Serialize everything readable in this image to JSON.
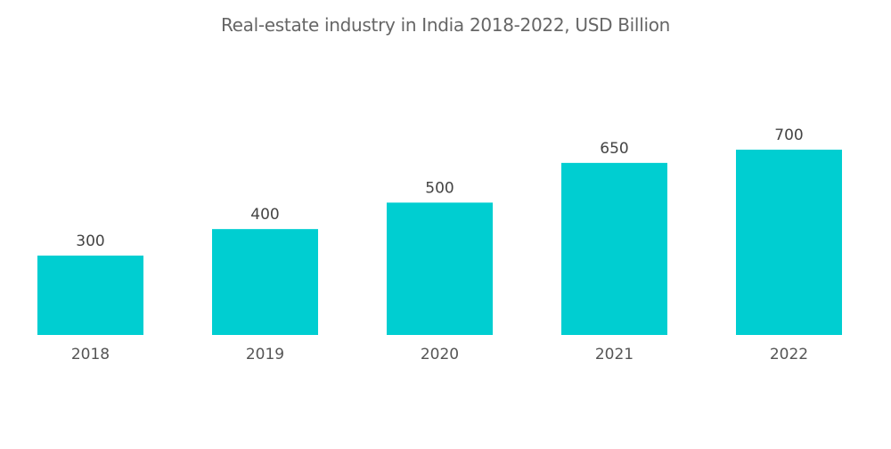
{
  "chart_data": {
    "type": "bar",
    "title": "Real-estate industry in India 2018-2022, USD Billion",
    "categories": [
      "2018",
      "2019",
      "2020",
      "2021",
      "2022"
    ],
    "values": [
      300,
      400,
      500,
      650,
      700
    ],
    "data_labels": [
      "300",
      "400",
      "500",
      "650",
      "700"
    ],
    "xlabel": "",
    "ylabel": "",
    "ylim": [
      0,
      700
    ],
    "grid": false,
    "legend": "none",
    "bar_color": "#00CED1"
  }
}
